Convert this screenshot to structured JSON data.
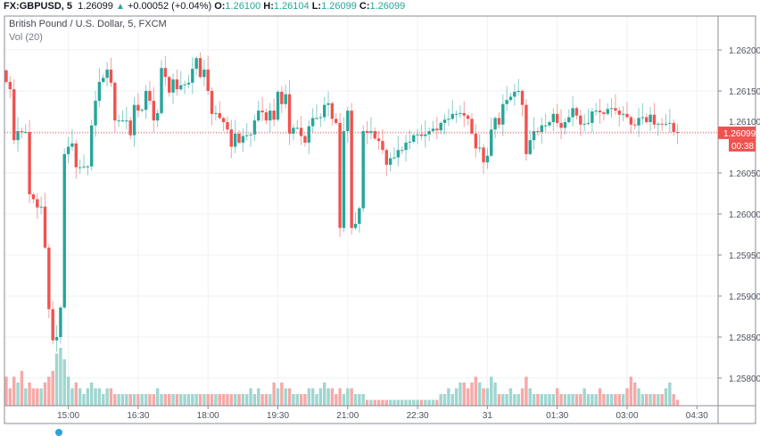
{
  "header": {
    "symbol": "FX:GBPUSD, 5",
    "last": "1.26099",
    "change": "+0.00052 (+0.04%)",
    "o_label": "O:",
    "o": "1.26100",
    "h_label": "H:",
    "h": "1.26104",
    "l_label": "L:",
    "l": "1.26099",
    "c_label": "C:",
    "c": "1.26099"
  },
  "pane": {
    "title": "British Pound / U.S. Dollar, 5, FXCM",
    "volume_label": "Vol (20)"
  },
  "colors": {
    "up": "#26a69a",
    "down": "#ef5350",
    "vol_up": "#9fd6d0",
    "vol_down": "#f6a9a7",
    "grid": "#eef2f6"
  },
  "chart_data": {
    "type": "candlestick",
    "title": "British Pound / U.S. Dollar, 5, FXCM",
    "ylim": [
      1.25745,
      1.2624
    ],
    "y_ticks": [
      "1.26200",
      "1.26150",
      "1.26100",
      "1.26050",
      "1.26000",
      "1.25950",
      "1.25900",
      "1.25850",
      "1.25800"
    ],
    "x_ticks": [
      {
        "label": "15:00",
        "bar": 16
      },
      {
        "label": "16:30",
        "bar": 34
      },
      {
        "label": "18:00",
        "bar": 52
      },
      {
        "label": "19:30",
        "bar": 70
      },
      {
        "label": "21:00",
        "bar": 88
      },
      {
        "label": "22:30",
        "bar": 106
      },
      {
        "label": "31",
        "bar": 124
      },
      {
        "label": "01:30",
        "bar": 142
      },
      {
        "label": "03:00",
        "bar": 160
      },
      {
        "label": "04:30",
        "bar": 178
      }
    ],
    "last_price_label": "1.26099",
    "countdown": "00:38",
    "first_open": 1.26175,
    "closes": [
      1.26161,
      1.26152,
      1.2609,
      1.26101,
      1.261,
      1.261,
      1.26024,
      1.26018,
      1.26008,
      1.26009,
      1.25959,
      1.25884,
      1.25846,
      1.2585,
      1.25886,
      1.26073,
      1.26082,
      1.26086,
      1.26057,
      1.26057,
      1.26058,
      1.26058,
      1.26108,
      1.26138,
      1.26161,
      1.26166,
      1.26176,
      1.2616,
      1.26114,
      1.26114,
      1.26114,
      1.26114,
      1.26096,
      1.26133,
      1.26126,
      1.26127,
      1.2615,
      1.26138,
      1.26114,
      1.26123,
      1.26178,
      1.26167,
      1.26148,
      1.26164,
      1.26152,
      1.26157,
      1.26158,
      1.2616,
      1.26177,
      1.2619,
      1.26167,
      1.26176,
      1.2615,
      1.26122,
      1.26123,
      1.26117,
      1.26112,
      1.26103,
      1.26082,
      1.26098,
      1.26087,
      1.26095,
      1.26096,
      1.26097,
      1.26114,
      1.26126,
      1.26124,
      1.26114,
      1.26126,
      1.26115,
      1.26149,
      1.26134,
      1.26146,
      1.26098,
      1.26105,
      1.26105,
      1.26095,
      1.26087,
      1.26107,
      1.26117,
      1.26117,
      1.26118,
      1.26133,
      1.26135,
      1.26116,
      1.26111,
      1.25983,
      1.26101,
      1.26126,
      1.25983,
      1.25988,
      1.26007,
      1.26101,
      1.26099,
      1.26101,
      1.26092,
      1.26089,
      1.26078,
      1.2606,
      1.26068,
      1.26069,
      1.26078,
      1.26078,
      1.26087,
      1.26088,
      1.26096,
      1.26097,
      1.26095,
      1.26097,
      1.26101,
      1.26104,
      1.26102,
      1.26111,
      1.26115,
      1.26116,
      1.26122,
      1.26122,
      1.26123,
      1.2612,
      1.26116,
      1.26098,
      1.2608,
      1.26081,
      1.26063,
      1.26071,
      1.26103,
      1.26117,
      1.26109,
      1.26134,
      1.26139,
      1.26143,
      1.26149,
      1.2615,
      1.26133,
      1.26073,
      1.2609,
      1.26101,
      1.261,
      1.26108,
      1.26108,
      1.26112,
      1.26122,
      1.26111,
      1.26105,
      1.26112,
      1.26118,
      1.26129,
      1.2612,
      1.26109,
      1.2611,
      1.26111,
      1.26125,
      1.26126,
      1.26124,
      1.26122,
      1.26128,
      1.26129,
      1.26126,
      1.26121,
      1.26122,
      1.26118,
      1.26109,
      1.26108,
      1.26117,
      1.26118,
      1.26112,
      1.26121,
      1.26109,
      1.2611,
      1.26109,
      1.2611,
      1.26111,
      1.261,
      1.26099
    ],
    "volumes": [
      5,
      3,
      5,
      4,
      6,
      3,
      4,
      3,
      3,
      3,
      4,
      5,
      6,
      9,
      10,
      8,
      5,
      3,
      4,
      3,
      2,
      3,
      4,
      3,
      3,
      2,
      3,
      3,
      2,
      2,
      2,
      2,
      2,
      2,
      2,
      2,
      2,
      2,
      2,
      3,
      2,
      2,
      2,
      2,
      2,
      2,
      2,
      2,
      2,
      2,
      2,
      2,
      2,
      2,
      2,
      2,
      2,
      2,
      2,
      2,
      2,
      2,
      2,
      3,
      2,
      3,
      2,
      2,
      2,
      4,
      3,
      4,
      3,
      3,
      2,
      2,
      2,
      2,
      3,
      3,
      2,
      3,
      4,
      3,
      3,
      2,
      3,
      2,
      3,
      3,
      2,
      2,
      2,
      1,
      1,
      1,
      1,
      1,
      1,
      1,
      1,
      1,
      1,
      1,
      1,
      1,
      1,
      1,
      1,
      1,
      1,
      1,
      2,
      2,
      3,
      2,
      3,
      4,
      4,
      3,
      4,
      5,
      4,
      3,
      3,
      5,
      4,
      2,
      2,
      2,
      3,
      2,
      2,
      3,
      5,
      3,
      2,
      2,
      2,
      2,
      2,
      2,
      3,
      2,
      2,
      2,
      2,
      2,
      2,
      3,
      2,
      2,
      2,
      3,
      2,
      2,
      2,
      2,
      2,
      2,
      3,
      5,
      4,
      3,
      2,
      2,
      2,
      2,
      2,
      2,
      3,
      4,
      2,
      1
    ]
  }
}
